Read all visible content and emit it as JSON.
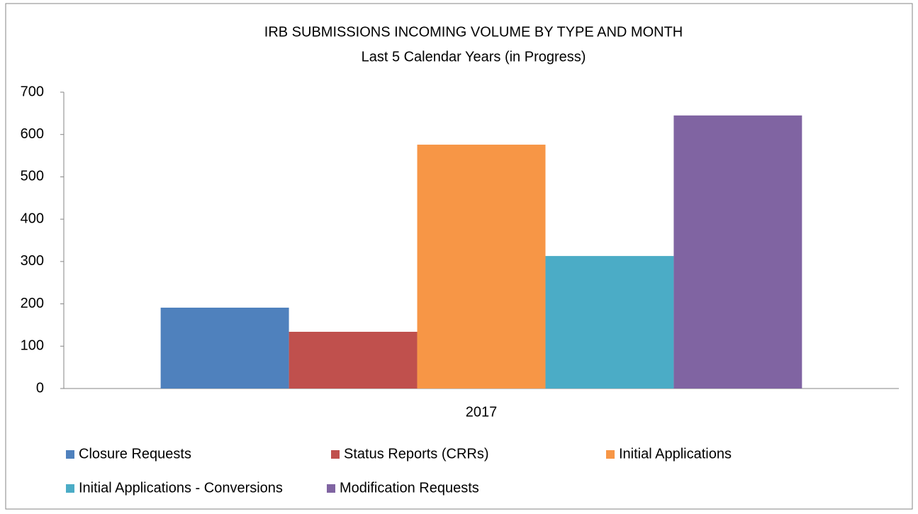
{
  "chart_data": {
    "type": "bar",
    "title": "IRB SUBMISSIONS INCOMING VOLUME BY TYPE AND MONTH",
    "subtitle": "Last 5 Calendar Years (in Progress)",
    "categories": [
      "2017"
    ],
    "series": [
      {
        "name": "Closure Requests",
        "color": "#4f81bd",
        "values": [
          191
        ]
      },
      {
        "name": "Status Reports (CRRs)",
        "color": "#c0504d",
        "values": [
          134
        ]
      },
      {
        "name": "Initial Applications",
        "color": "#f79646",
        "values": [
          576
        ]
      },
      {
        "name": "Initial Applications - Conversions",
        "color": "#4bacc6",
        "values": [
          313
        ]
      },
      {
        "name": "Modification Requests",
        "color": "#8064a2",
        "values": [
          645
        ]
      }
    ],
    "ylim": [
      0,
      700
    ],
    "yticks": [
      0,
      100,
      200,
      300,
      400,
      500,
      600,
      700
    ],
    "grid": false,
    "legend": "bottom"
  }
}
